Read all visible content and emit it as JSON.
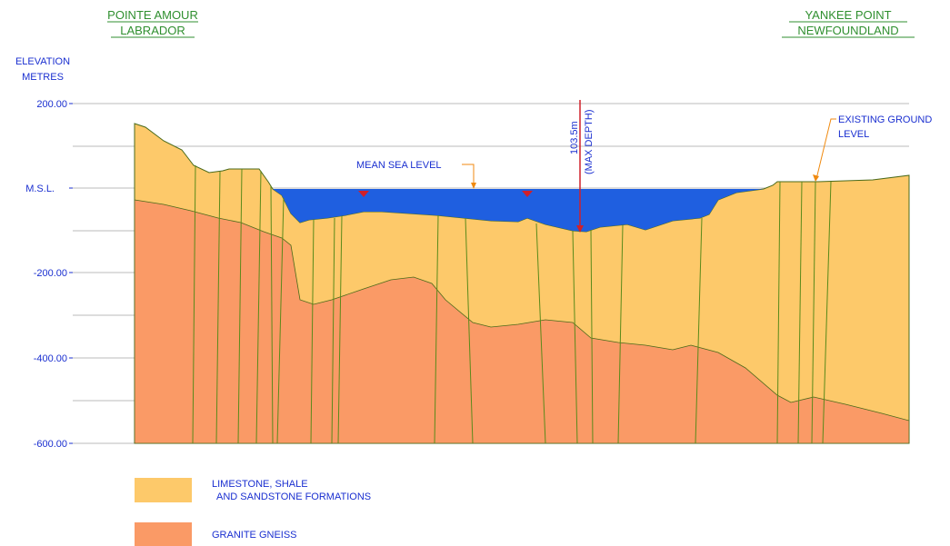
{
  "header": {
    "left": {
      "line1": "POINTE AMOUR",
      "line2": "LABRADOR"
    },
    "right": {
      "line1": "YANKEE POINT",
      "line2": "NEWFOUNDLAND"
    }
  },
  "axis": {
    "label1": "ELEVATION",
    "label2": "METRES",
    "ticks": [
      "200.00",
      "M.S.L.",
      "-200.00",
      "-400.00",
      "-600.00"
    ]
  },
  "annotations": {
    "sea_level": "MEAN SEA LEVEL",
    "depth": "103.5m",
    "depth_note": "(MAX DEPTH)",
    "ground1": "EXISTING GROUND",
    "ground2": "LEVEL"
  },
  "legend": [
    {
      "line1": "LIMESTONE, SHALE",
      "line2": "AND SANDSTONE FORMATIONS"
    },
    {
      "line1": "GRANITE GNEISS"
    }
  ]
}
